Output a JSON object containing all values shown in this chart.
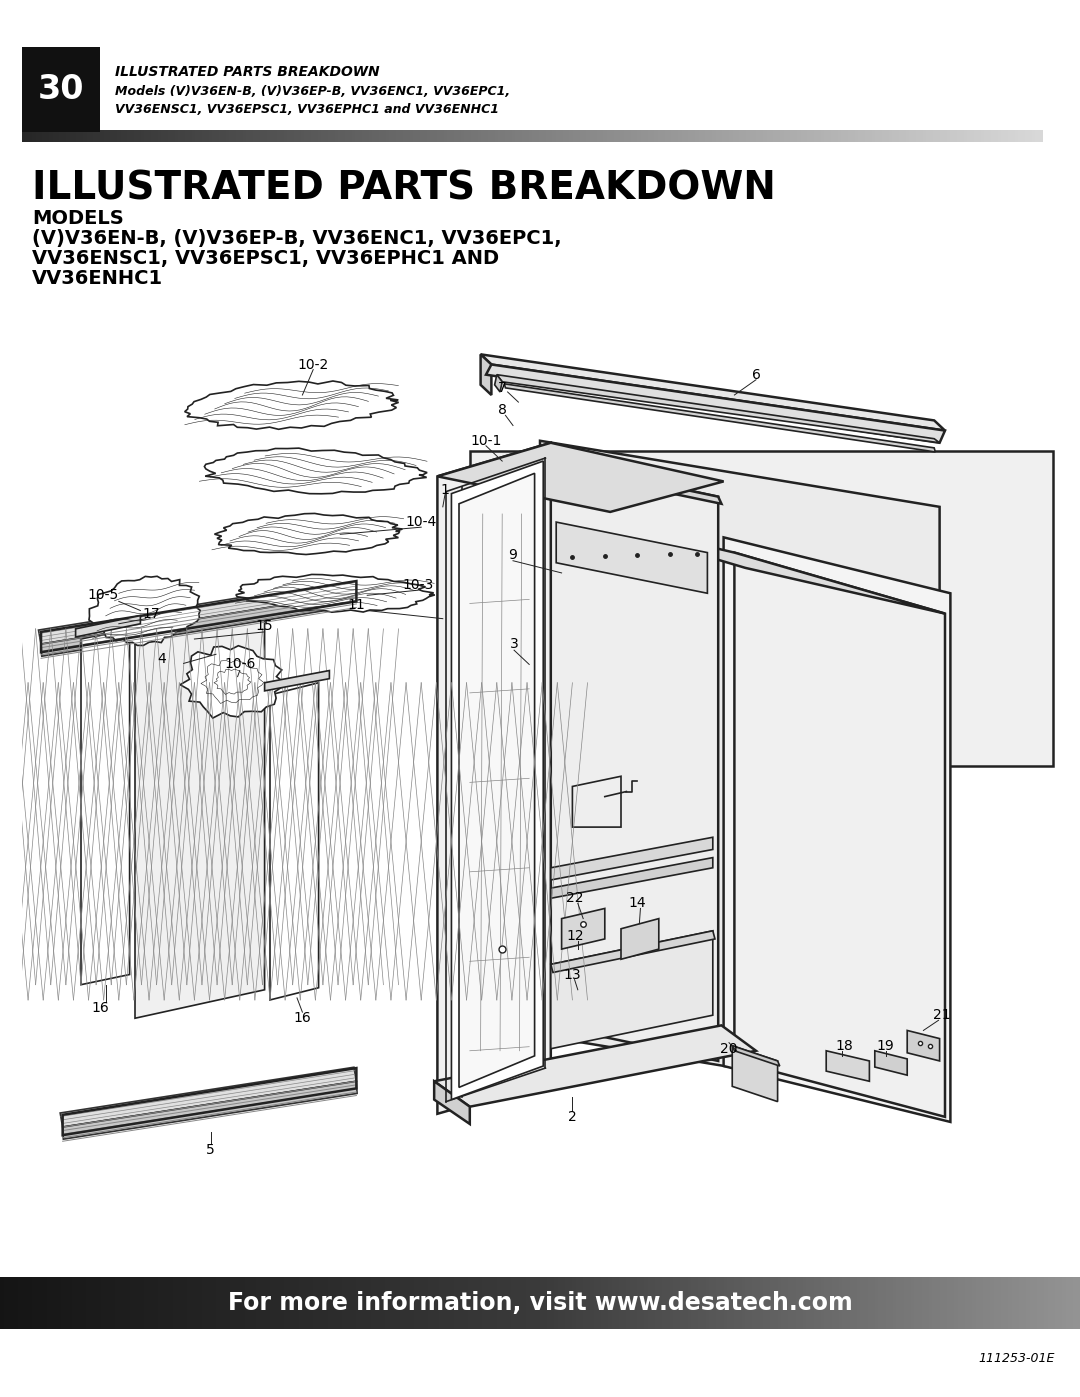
{
  "page_number": "30",
  "header_title": "ILLUSTRATED PARTS BREAKDOWN",
  "header_subtitle_line1": "Models (V)V36EN-B, (V)V36EP-B, VV36ENC1, VV36EPC1,",
  "header_subtitle_line2": "VV36ENSC1, VV36EPSC1, VV36EPHC1 and VV36ENHC1",
  "main_title": "ILLUSTRATED PARTS BREAKDOWN",
  "models_label": "MODELS",
  "models_line1": "(V)V36EN-B, (V)V36EP-B, VV36ENC1, VV36EPC1,",
  "models_line2": "VV36ENSC1, VV36EPSC1, VV36EPHC1 AND",
  "models_line3": "VV36ENHC1",
  "footer_text": "For more information, visit www.desatech.com",
  "doc_number": "111253-01E",
  "bg_color": "#ffffff",
  "lw_thick": 1.8,
  "lw_med": 1.2,
  "lw_thin": 0.7,
  "gray_light": "#f0f0f0",
  "gray_med": "#d8d8d8",
  "gray_dark": "#aaaaaa",
  "line_color": "#222222"
}
